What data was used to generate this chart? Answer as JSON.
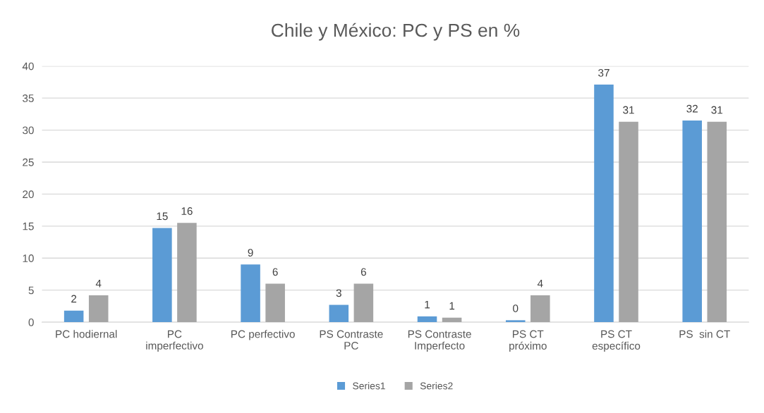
{
  "chart_data": {
    "type": "bar",
    "title": "Chile y México: PC y PS en %",
    "categories": [
      "PC hodiernal",
      "PC\nimperfectivo",
      "PC perfectivo",
      "PS Contraste\nPC",
      "PS Contraste\nImperfecto",
      "PS CT\npróximo",
      "PS CT\nespecífico",
      "PS  sin CT"
    ],
    "series": [
      {
        "name": "Series1",
        "color": "#5b9bd5",
        "values": [
          1.8,
          14.7,
          9.0,
          2.7,
          0.9,
          0.3,
          37.1,
          31.5
        ],
        "value_labels": [
          "2",
          "15",
          "9",
          "3",
          "1",
          "0",
          "37",
          "32"
        ]
      },
      {
        "name": "Series2",
        "color": "#a5a5a5",
        "values": [
          4.2,
          15.5,
          6.0,
          6.0,
          0.7,
          4.2,
          31.3,
          31.3
        ],
        "value_labels": [
          "4",
          "16",
          "6",
          "6",
          "1",
          "4",
          "31",
          "31"
        ]
      }
    ],
    "ylim": [
      0,
      40
    ],
    "yticks": [
      0,
      5,
      10,
      15,
      20,
      25,
      30,
      35,
      40
    ],
    "grid": "y",
    "legend": "bottom"
  }
}
